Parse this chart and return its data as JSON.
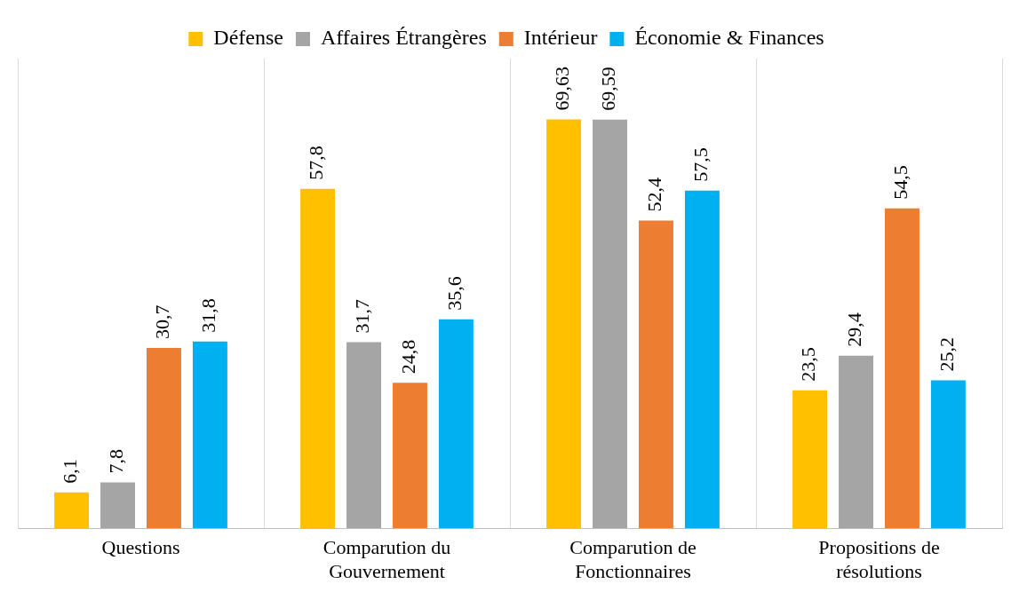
{
  "chart_data": {
    "type": "bar",
    "categories": [
      "Questions",
      "Comparution du Gouvernement",
      "Comparution de Fonctionnaires",
      "Propositions de résolutions"
    ],
    "series": [
      {
        "name": "Défense",
        "color": "#ffc000",
        "values": [
          6.1,
          57.8,
          69.63,
          23.5
        ],
        "value_labels": [
          "6,1",
          "57,8",
          "69,63",
          "23,5"
        ]
      },
      {
        "name": "Affaires Étrangères",
        "color": "#a5a5a5",
        "values": [
          7.8,
          31.7,
          69.59,
          29.4
        ],
        "value_labels": [
          "7,8",
          "31,7",
          "69,59",
          "29,4"
        ]
      },
      {
        "name": "Intérieur",
        "color": "#ed7d31",
        "values": [
          30.7,
          24.8,
          52.4,
          54.5
        ],
        "value_labels": [
          "30,7",
          "24,8",
          "52,4",
          "54,5"
        ]
      },
      {
        "name": "Économie & Finances",
        "color": "#00b0f0",
        "values": [
          31.8,
          35.6,
          57.5,
          25.2
        ],
        "value_labels": [
          "31,8",
          "35,6",
          "57,5",
          "25,2"
        ]
      }
    ],
    "legend": "top",
    "grid": "x",
    "tick_labels": "x"
  }
}
